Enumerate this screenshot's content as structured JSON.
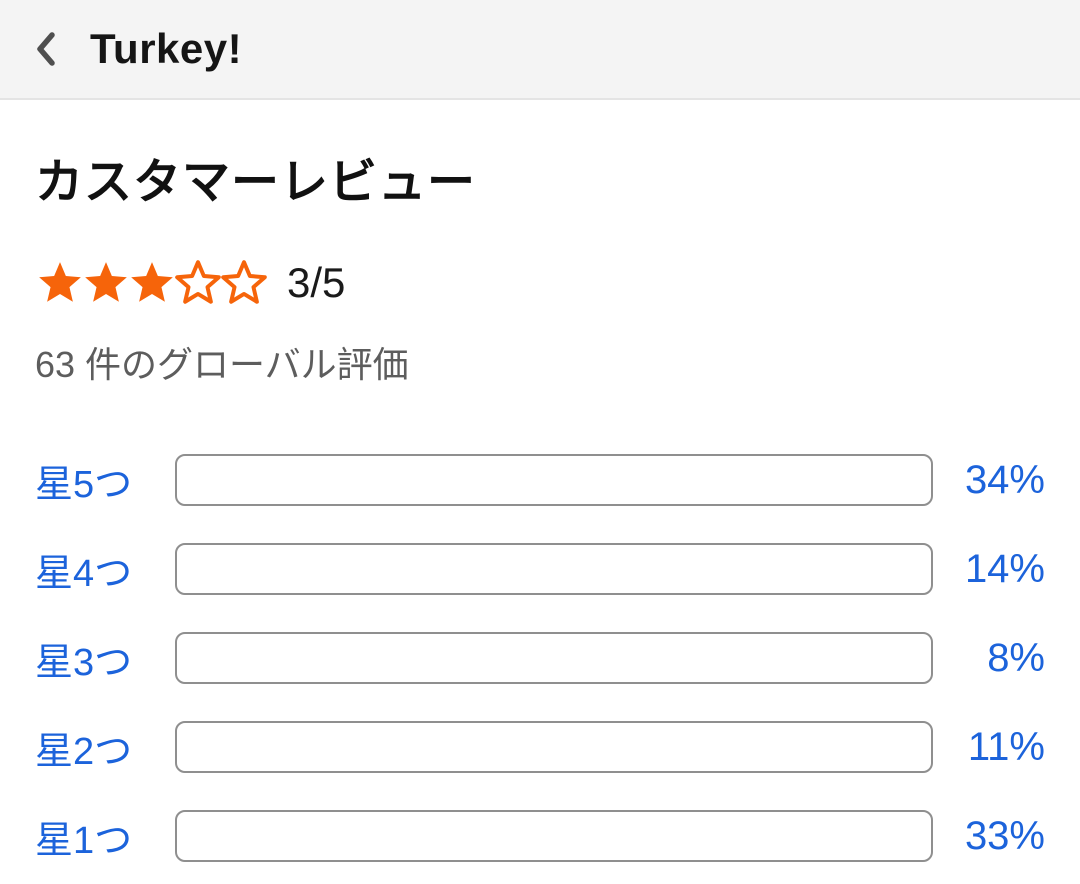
{
  "colors": {
    "accent_orange": "#f6640a",
    "link_blue": "#1c63db",
    "header_background": "#f4f4f4",
    "bar_border_gray": "#8f8f8f"
  },
  "header": {
    "back_icon": "chevron-left",
    "title": "Turkey!"
  },
  "review_summary": {
    "heading": "カスタマーレビュー",
    "stars_filled": 3,
    "stars_total": 5,
    "rating_text": "3/5",
    "global_ratings_text": "63 件のグローバル評価"
  },
  "histogram": {
    "rows": [
      {
        "label": "星5つ",
        "percent": 34,
        "percent_label": "34%"
      },
      {
        "label": "星4つ",
        "percent": 14,
        "percent_label": "14%"
      },
      {
        "label": "星3つ",
        "percent": 8,
        "percent_label": "8%"
      },
      {
        "label": "星2つ",
        "percent": 11,
        "percent_label": "11%"
      },
      {
        "label": "星1つ",
        "percent": 33,
        "percent_label": "33%"
      }
    ]
  }
}
